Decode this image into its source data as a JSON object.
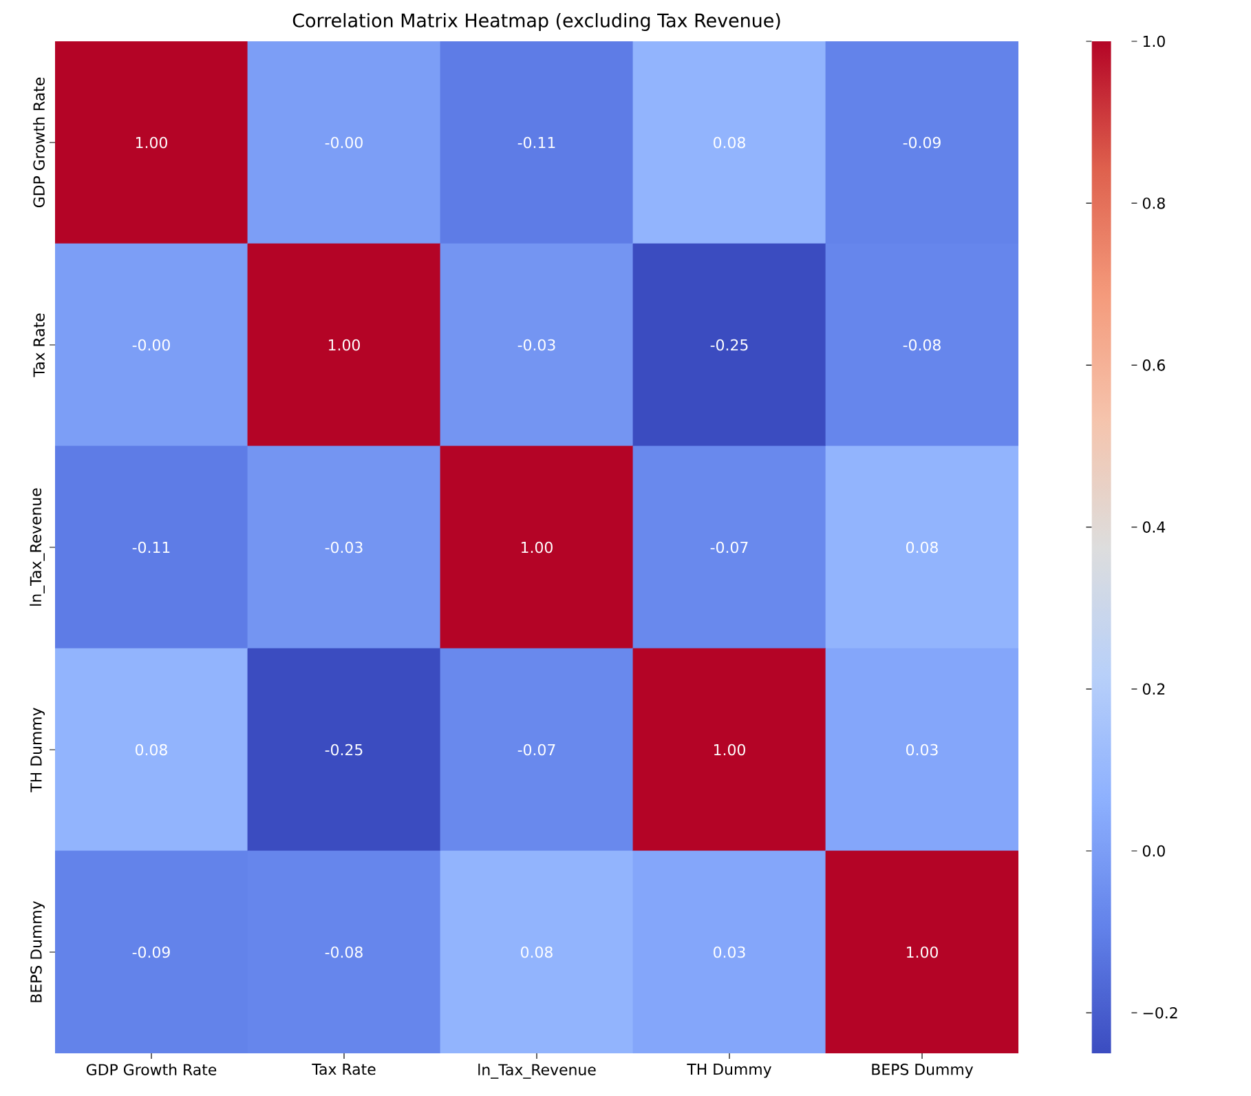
{
  "chart_data": {
    "type": "heatmap",
    "title": "Correlation Matrix Heatmap (excluding Tax Revenue)",
    "categories": [
      "GDP Growth Rate",
      "Tax Rate",
      "ln_Tax_Revenue",
      "TH Dummy",
      "BEPS Dummy"
    ],
    "y_categories": [
      "GDP Growth Rate",
      "Tax Rate",
      "ln_Tax_Revenue",
      "TH Dummy",
      "BEPS Dummy"
    ],
    "cells": [
      [
        1.0,
        -0.0,
        -0.11,
        0.08,
        -0.09
      ],
      [
        -0.0,
        1.0,
        -0.03,
        -0.25,
        -0.08
      ],
      [
        -0.11,
        -0.03,
        1.0,
        -0.07,
        0.08
      ],
      [
        0.08,
        -0.25,
        -0.07,
        1.0,
        0.03
      ],
      [
        -0.09,
        -0.08,
        0.08,
        0.03,
        1.0
      ]
    ],
    "cell_labels": [
      [
        "1.00",
        "-0.00",
        "-0.11",
        "0.08",
        "-0.09"
      ],
      [
        "-0.00",
        "1.00",
        "-0.03",
        "-0.25",
        "-0.08"
      ],
      [
        "-0.11",
        "-0.03",
        "1.00",
        "-0.07",
        "0.08"
      ],
      [
        "0.08",
        "-0.25",
        "-0.07",
        "1.00",
        "0.03"
      ],
      [
        "-0.09",
        "-0.08",
        "0.08",
        "0.03",
        "1.00"
      ]
    ],
    "clim": [
      -0.25,
      1.0
    ],
    "cticks": [
      {
        "value": -0.2,
        "label": "−0.2"
      },
      {
        "value": 0,
        "label": "0.0"
      },
      {
        "value": 0.2,
        "label": "0.2"
      },
      {
        "value": 0.4,
        "label": "0.4"
      },
      {
        "value": 0.6,
        "label": "0.6"
      },
      {
        "value": 0.8,
        "label": "0.8"
      },
      {
        "value": 1.0,
        "label": "1.0"
      }
    ]
  }
}
